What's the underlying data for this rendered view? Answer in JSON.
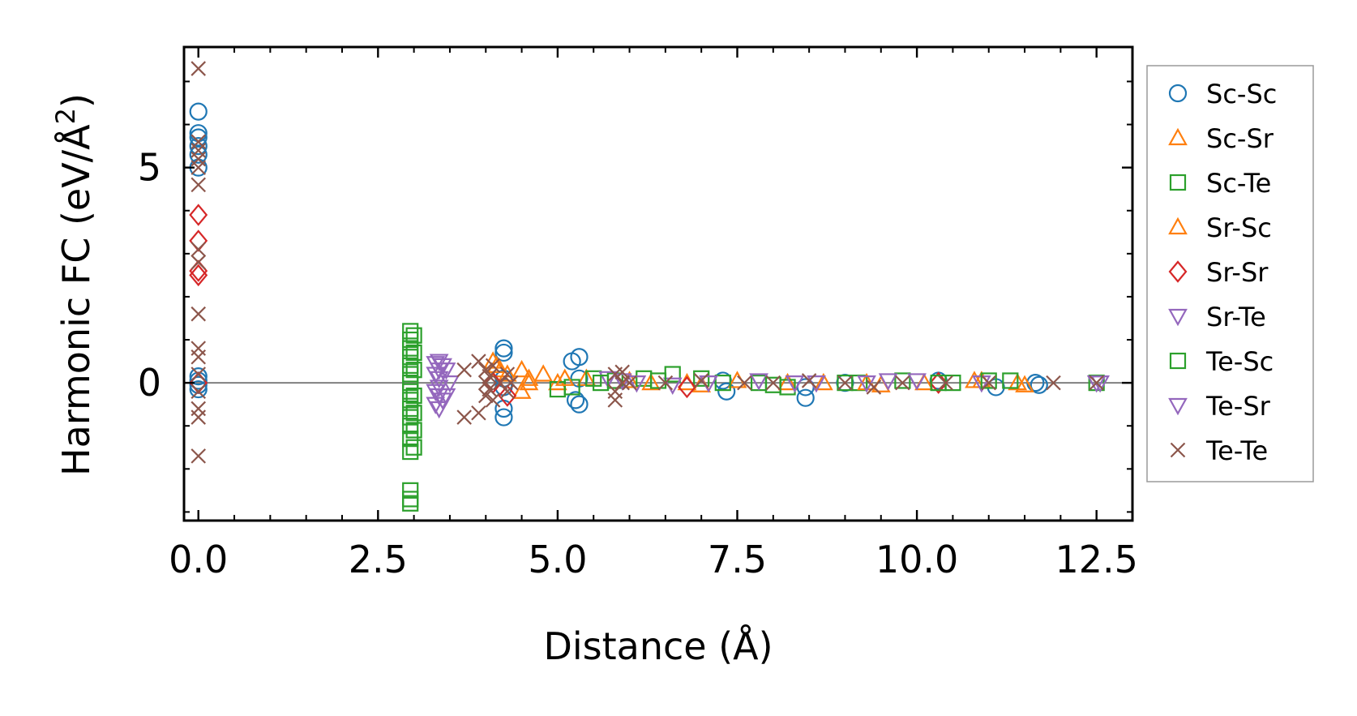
{
  "chart_data": {
    "type": "scatter",
    "xlabel": "Distance (Å)",
    "ylabel_main": "Harmonic FC (eV/Å",
    "ylabel_sup": "2",
    "ylabel_close": ")",
    "xlim": [
      -0.2,
      13.0
    ],
    "ylim": [
      -3.2,
      7.8
    ],
    "xticks": [
      0.0,
      2.5,
      5.0,
      7.5,
      10.0,
      12.5
    ],
    "xtick_labels": [
      "0.0",
      "2.5",
      "5.0",
      "7.5",
      "10.0",
      "12.5"
    ],
    "yticks": [
      0,
      5
    ],
    "ytick_labels": [
      "0",
      "5"
    ],
    "zero_line": true,
    "grid": false,
    "legend_position": "outside-right",
    "series": [
      {
        "name": "Sc-Sc",
        "marker": "circle",
        "color": "#1f77b4",
        "points": [
          [
            0,
            6.3
          ],
          [
            0,
            5.8
          ],
          [
            0,
            5.7
          ],
          [
            0,
            5.5
          ],
          [
            0,
            5.3
          ],
          [
            0,
            5.0
          ],
          [
            0,
            0.15
          ],
          [
            0,
            0.05
          ],
          [
            0,
            -0.05
          ],
          [
            0,
            -0.15
          ],
          [
            4.25,
            0.8
          ],
          [
            4.25,
            0.7
          ],
          [
            4.25,
            -0.6
          ],
          [
            4.25,
            -0.8
          ],
          [
            4.25,
            0.1
          ],
          [
            4.25,
            -0.1
          ],
          [
            5.2,
            0.5
          ],
          [
            5.3,
            0.6
          ],
          [
            5.3,
            -0.5
          ],
          [
            5.25,
            -0.4
          ],
          [
            5.3,
            0.1
          ],
          [
            7.3,
            0.05
          ],
          [
            7.35,
            -0.2
          ],
          [
            8.45,
            -0.1
          ],
          [
            8.45,
            -0.35
          ],
          [
            9.0,
            0.0
          ],
          [
            10.3,
            0.05
          ],
          [
            11.1,
            -0.1
          ],
          [
            11.65,
            0.0
          ],
          [
            11.7,
            -0.05
          ]
        ]
      },
      {
        "name": "Sc-Sr",
        "marker": "triangle-up",
        "color": "#ff7f0e",
        "points": [
          [
            4.1,
            0.5
          ],
          [
            4.2,
            0.3
          ],
          [
            4.5,
            0.3
          ],
          [
            4.5,
            -0.2
          ],
          [
            4.6,
            0.1
          ],
          [
            4.8,
            0.2
          ],
          [
            5.0,
            0.0
          ],
          [
            5.4,
            0.1
          ],
          [
            6.0,
            0.05
          ],
          [
            6.8,
            0.0
          ],
          [
            7.5,
            0.05
          ],
          [
            8.2,
            0.0
          ],
          [
            8.7,
            0.0
          ],
          [
            9.5,
            -0.05
          ],
          [
            10.1,
            0.0
          ],
          [
            10.8,
            0.05
          ],
          [
            11.4,
            0.0
          ],
          [
            11.5,
            -0.05
          ]
        ]
      },
      {
        "name": "Sc-Te",
        "marker": "square",
        "color": "#2ca02c",
        "points": [
          [
            2.95,
            1.2
          ],
          [
            2.95,
            1.0
          ],
          [
            2.95,
            0.8
          ],
          [
            2.95,
            0.6
          ],
          [
            2.95,
            0.4
          ],
          [
            2.95,
            0.2
          ],
          [
            2.95,
            0.0
          ],
          [
            2.95,
            -0.2
          ],
          [
            2.95,
            -0.4
          ],
          [
            2.95,
            -0.6
          ],
          [
            2.95,
            -0.8
          ],
          [
            2.95,
            -1.0
          ],
          [
            2.95,
            -1.3
          ],
          [
            2.95,
            -1.6
          ],
          [
            2.95,
            -2.5
          ],
          [
            2.95,
            -2.7
          ],
          [
            2.95,
            -2.8
          ],
          [
            5.0,
            -0.15
          ],
          [
            5.2,
            -0.1
          ],
          [
            5.5,
            0.1
          ],
          [
            5.8,
            0.05
          ],
          [
            6.2,
            0.1
          ],
          [
            6.6,
            0.2
          ],
          [
            7.0,
            0.1
          ],
          [
            7.8,
            0.0
          ],
          [
            8.2,
            -0.1
          ],
          [
            9.2,
            0.0
          ],
          [
            9.8,
            0.05
          ],
          [
            10.5,
            0.0
          ],
          [
            11.3,
            0.05
          ],
          [
            12.5,
            0.0
          ]
        ]
      },
      {
        "name": "Sr-Sc",
        "marker": "triangle-up",
        "color": "#ff7f0e",
        "points": [
          [
            4.15,
            0.4
          ],
          [
            4.3,
            0.2
          ],
          [
            4.6,
            0.0
          ],
          [
            5.1,
            0.1
          ],
          [
            6.3,
            0.0
          ],
          [
            7.0,
            -0.05
          ],
          [
            9.3,
            0.0
          ],
          [
            10.9,
            0.05
          ]
        ]
      },
      {
        "name": "Sr-Sr",
        "marker": "diamond",
        "color": "#d62728",
        "points": [
          [
            0,
            3.9
          ],
          [
            0,
            3.3
          ],
          [
            0,
            2.6
          ],
          [
            0,
            2.5
          ],
          [
            0,
            0.0
          ],
          [
            4.1,
            0.0
          ],
          [
            4.3,
            -0.3
          ],
          [
            6.8,
            -0.1
          ],
          [
            10.3,
            0.0
          ]
        ]
      },
      {
        "name": "Sr-Te",
        "marker": "triangle-down",
        "color": "#9467bd",
        "points": [
          [
            3.35,
            0.5
          ],
          [
            3.35,
            0.3
          ],
          [
            3.35,
            0.1
          ],
          [
            3.35,
            -0.1
          ],
          [
            3.35,
            -0.3
          ],
          [
            3.35,
            -0.6
          ],
          [
            3.4,
            0.4
          ],
          [
            3.4,
            -0.4
          ],
          [
            3.5,
            0.0
          ],
          [
            5.7,
            0.1
          ],
          [
            6.1,
            0.0
          ],
          [
            6.6,
            -0.05
          ],
          [
            7.8,
            0.05
          ],
          [
            8.6,
            0.0
          ],
          [
            9.3,
            0.0
          ],
          [
            10.0,
            0.05
          ],
          [
            10.9,
            0.0
          ],
          [
            12.5,
            0.0
          ]
        ]
      },
      {
        "name": "Te-Sc",
        "marker": "square",
        "color": "#2ca02c",
        "points": [
          [
            3.0,
            1.1
          ],
          [
            3.0,
            0.7
          ],
          [
            3.0,
            0.3
          ],
          [
            3.0,
            -0.3
          ],
          [
            3.0,
            -0.7
          ],
          [
            3.0,
            -1.1
          ],
          [
            3.0,
            -1.5
          ],
          [
            5.6,
            0.0
          ],
          [
            6.4,
            0.05
          ],
          [
            7.3,
            0.0
          ],
          [
            8.0,
            -0.05
          ],
          [
            9.0,
            0.0
          ],
          [
            10.3,
            0.0
          ],
          [
            11.0,
            0.05
          ]
        ]
      },
      {
        "name": "Te-Sr",
        "marker": "triangle-down",
        "color": "#9467bd",
        "points": [
          [
            3.3,
            0.45
          ],
          [
            3.3,
            0.2
          ],
          [
            3.3,
            -0.2
          ],
          [
            3.3,
            -0.5
          ],
          [
            3.45,
            0.3
          ],
          [
            3.45,
            -0.3
          ],
          [
            5.9,
            0.05
          ],
          [
            7.1,
            0.0
          ],
          [
            8.3,
            0.0
          ],
          [
            9.6,
            0.05
          ],
          [
            12.55,
            0.0
          ]
        ]
      },
      {
        "name": "Te-Te",
        "marker": "x",
        "color": "#8c564b",
        "points": [
          [
            0,
            7.3
          ],
          [
            0,
            5.6
          ],
          [
            0,
            5.4
          ],
          [
            0,
            5.2
          ],
          [
            0,
            5.0
          ],
          [
            0,
            4.6
          ],
          [
            0,
            3.1
          ],
          [
            0,
            2.8
          ],
          [
            0,
            1.6
          ],
          [
            0,
            0.8
          ],
          [
            0,
            0.6
          ],
          [
            0,
            0.2
          ],
          [
            0,
            -0.2
          ],
          [
            0,
            -0.6
          ],
          [
            0,
            -0.8
          ],
          [
            0,
            -1.7
          ],
          [
            3.7,
            0.3
          ],
          [
            3.7,
            -0.8
          ],
          [
            3.9,
            0.5
          ],
          [
            3.9,
            -0.7
          ],
          [
            4.0,
            0.3
          ],
          [
            4.0,
            0.0
          ],
          [
            4.0,
            -0.3
          ],
          [
            4.05,
            0.15
          ],
          [
            4.05,
            -0.15
          ],
          [
            4.1,
            0.4
          ],
          [
            4.1,
            -0.4
          ],
          [
            4.2,
            0.0
          ],
          [
            4.3,
            0.2
          ],
          [
            4.3,
            -0.2
          ],
          [
            4.35,
            0.0
          ],
          [
            5.8,
            0.2
          ],
          [
            5.8,
            -0.2
          ],
          [
            5.8,
            -0.4
          ],
          [
            5.9,
            0.0
          ],
          [
            5.9,
            0.25
          ],
          [
            6.0,
            0.0
          ],
          [
            6.5,
            0.0
          ],
          [
            7.0,
            0.05
          ],
          [
            7.6,
            0.0
          ],
          [
            8.0,
            0.0
          ],
          [
            8.5,
            0.05
          ],
          [
            9.0,
            0.0
          ],
          [
            9.4,
            -0.1
          ],
          [
            9.8,
            0.0
          ],
          [
            10.4,
            0.0
          ],
          [
            11.0,
            0.0
          ],
          [
            11.9,
            0.0
          ],
          [
            12.5,
            0.0
          ]
        ]
      }
    ]
  }
}
